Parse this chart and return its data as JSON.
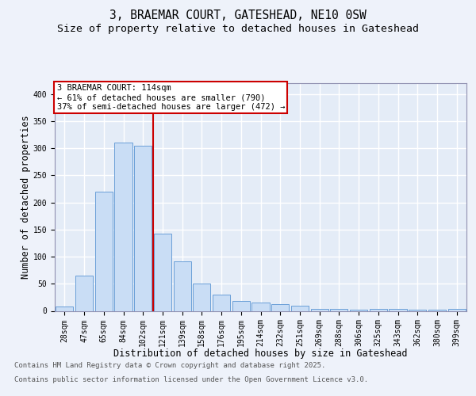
{
  "title_line1": "3, BRAEMAR COURT, GATESHEAD, NE10 0SW",
  "title_line2": "Size of property relative to detached houses in Gateshead",
  "xlabel": "Distribution of detached houses by size in Gateshead",
  "ylabel": "Number of detached properties",
  "categories": [
    "28sqm",
    "47sqm",
    "65sqm",
    "84sqm",
    "102sqm",
    "121sqm",
    "139sqm",
    "158sqm",
    "176sqm",
    "195sqm",
    "214sqm",
    "232sqm",
    "251sqm",
    "269sqm",
    "288sqm",
    "306sqm",
    "325sqm",
    "343sqm",
    "362sqm",
    "380sqm",
    "399sqm"
  ],
  "bar_heights": [
    8,
    65,
    220,
    310,
    305,
    143,
    92,
    50,
    30,
    18,
    15,
    13,
    10,
    4,
    4,
    2,
    3,
    3,
    2,
    2,
    3
  ],
  "bar_color": "#c9ddf5",
  "bar_edge_color": "#6a9fd8",
  "vline_color": "#cc0000",
  "vline_x": 4.5,
  "annotation_text": "3 BRAEMAR COURT: 114sqm\n← 61% of detached houses are smaller (790)\n37% of semi-detached houses are larger (472) →",
  "annotation_box_edge_color": "#cc0000",
  "ylim": [
    0,
    420
  ],
  "yticks": [
    0,
    50,
    100,
    150,
    200,
    250,
    300,
    350,
    400
  ],
  "footer_line1": "Contains HM Land Registry data © Crown copyright and database right 2025.",
  "footer_line2": "Contains public sector information licensed under the Open Government Licence v3.0.",
  "fig_bg_color": "#eef2fa",
  "plot_bg_color": "#e4ecf7",
  "grid_color": "#ffffff",
  "title_fontsize": 10.5,
  "subtitle_fontsize": 9.5,
  "axis_label_fontsize": 8.5,
  "tick_fontsize": 7,
  "annotation_fontsize": 7.5,
  "footer_fontsize": 6.5
}
